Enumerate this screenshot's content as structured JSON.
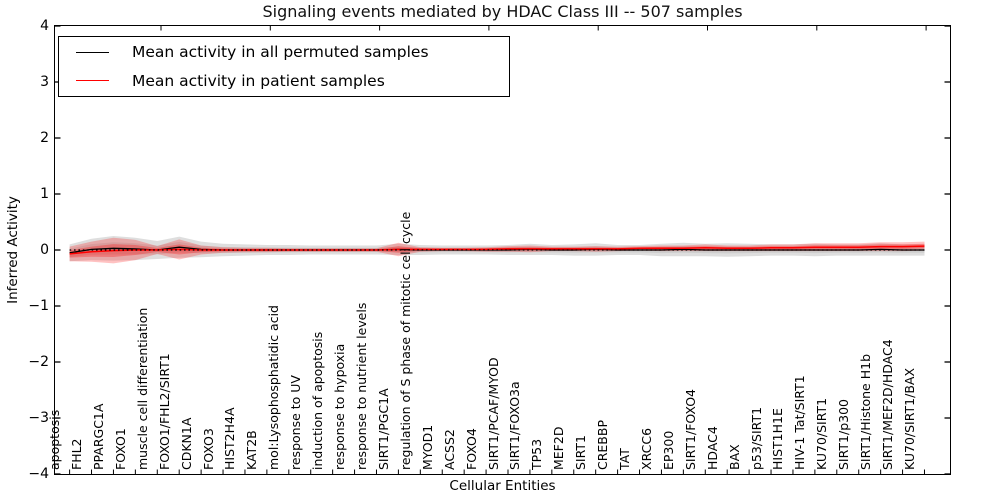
{
  "figure": {
    "title": "Signaling events mediated by HDAC Class III -- 507 samples",
    "xlabel": "Cellular Entities",
    "ylabel": "Inferred Activity"
  },
  "legend": {
    "items": [
      {
        "label": "Mean activity in all permuted samples",
        "color": "#000000"
      },
      {
        "label": "Mean activity in patient samples",
        "color": "#ff0000"
      }
    ]
  },
  "chart_data": {
    "type": "line",
    "title": "Signaling events mediated by HDAC Class III -- 507 samples",
    "xlabel": "Cellular Entities",
    "ylabel": "Inferred Activity",
    "ylim": [
      -4,
      4
    ],
    "yticks": [
      4,
      3,
      2,
      1,
      0,
      -1,
      -2,
      -3,
      -4
    ],
    "ytick_labels": [
      "4",
      "3",
      "2",
      "1",
      "0",
      "−1",
      "−2",
      "−3",
      "−4"
    ],
    "grid": false,
    "legend_position": "upper left",
    "zero_line": "dotted",
    "colors": {
      "permuted_line": "#000000",
      "patient_line": "#ff0000",
      "permuted_band": "rgba(0,0,0,0.13)",
      "patient_band": "rgba(255,0,0,0.24)"
    },
    "categories": [
      "apoptosis",
      "FHL2",
      "PPARGC1A",
      "FOXO1",
      "muscle cell differentiation",
      "FOXO1/FHL2/SIRT1",
      "CDKN1A",
      "FOXO3",
      "HIST2H4A",
      "KAT2B",
      "mol:Lysophosphatidic acid",
      "response to UV",
      "induction of apoptosis",
      "response to hypoxia",
      "response to nutrient levels",
      "SIRT1/PGC1A",
      "regulation of S phase of mitotic cell cycle",
      "MYOD1",
      "ACSS2",
      "FOXO4",
      "SIRT1/PCAF/MYOD",
      "SIRT1/FOXO3a",
      "TP53",
      "MEF2D",
      "SIRT1",
      "CREBBP",
      "TAT",
      "XRCC6",
      "EP300",
      "SIRT1/FOXO4",
      "HDAC4",
      "BAX",
      "p53/SIRT1",
      "HIST1H1E",
      "HIV-1 Tat/SIRT1",
      "KU70/SIRT1",
      "SIRT1/p300",
      "SIRT1/Histone H1b",
      "SIRT1/MEF2D/HDAC4",
      "KU70/SIRT1/BAX"
    ],
    "series": [
      {
        "name": "Mean activity in all permuted samples",
        "values": [
          -0.05,
          0.01,
          0.03,
          0.02,
          0.0,
          0.05,
          0.01,
          0.0,
          0.0,
          0.0,
          0.0,
          0.0,
          0.0,
          0.0,
          0.0,
          0.01,
          0.0,
          0.0,
          0.0,
          0.0,
          0.0,
          0.01,
          0.0,
          0.0,
          0.01,
          0.0,
          0.0,
          0.0,
          0.01,
          0.0,
          0.0,
          0.0,
          0.0,
          0.0,
          0.0,
          0.0,
          0.0,
          0.01,
          0.0,
          0.0
        ],
        "std": [
          0.15,
          0.19,
          0.22,
          0.2,
          0.16,
          0.19,
          0.14,
          0.11,
          0.1,
          0.09,
          0.09,
          0.08,
          0.08,
          0.08,
          0.08,
          0.1,
          0.09,
          0.08,
          0.08,
          0.08,
          0.09,
          0.1,
          0.09,
          0.1,
          0.11,
          0.09,
          0.09,
          0.11,
          0.12,
          0.11,
          0.12,
          0.11,
          0.1,
          0.1,
          0.11,
          0.1,
          0.1,
          0.11,
          0.1,
          0.1
        ]
      },
      {
        "name": "Mean activity in patient samples",
        "values": [
          -0.07,
          -0.03,
          -0.01,
          0.0,
          0.0,
          0.01,
          0.0,
          0.0,
          0.0,
          0.0,
          0.0,
          0.0,
          0.0,
          0.0,
          0.0,
          0.01,
          0.01,
          0.01,
          0.01,
          0.01,
          0.02,
          0.02,
          0.02,
          0.02,
          0.02,
          0.02,
          0.03,
          0.03,
          0.03,
          0.04,
          0.03,
          0.03,
          0.04,
          0.04,
          0.05,
          0.05,
          0.05,
          0.06,
          0.06,
          0.07
        ],
        "std": [
          0.13,
          0.18,
          0.23,
          0.18,
          0.07,
          0.18,
          0.08,
          0.05,
          0.04,
          0.04,
          0.03,
          0.03,
          0.03,
          0.03,
          0.03,
          0.12,
          0.04,
          0.03,
          0.03,
          0.04,
          0.05,
          0.06,
          0.04,
          0.04,
          0.05,
          0.04,
          0.04,
          0.05,
          0.05,
          0.06,
          0.05,
          0.05,
          0.06,
          0.06,
          0.07,
          0.07,
          0.07,
          0.08,
          0.08,
          0.08
        ]
      }
    ]
  }
}
